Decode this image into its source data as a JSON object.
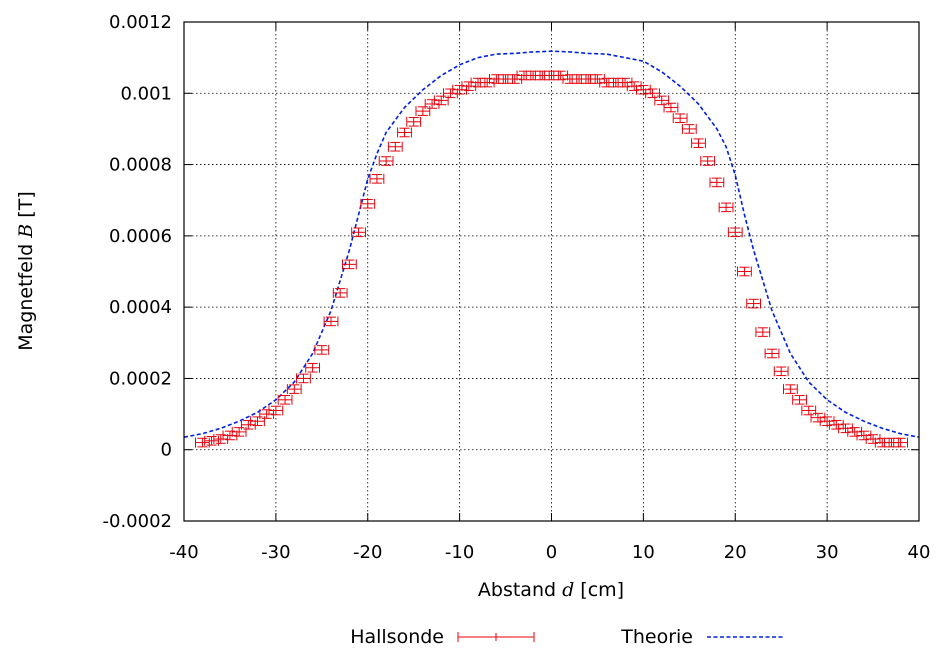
{
  "chart_data": {
    "type": "scatter",
    "title": "",
    "xlabel": {
      "prefix": "Abstand ",
      "symbol": "d",
      "suffix": " [cm]"
    },
    "ylabel": {
      "prefix": "Magnetfeld ",
      "symbol": "B",
      "suffix": " [T]"
    },
    "xlim": [
      -40,
      40
    ],
    "ylim": [
      -0.0002,
      0.0012
    ],
    "x_ticks": [
      "-40",
      "-30",
      "-20",
      "-10",
      "0",
      "10",
      "20",
      "30",
      "40"
    ],
    "y_ticks": [
      "-0.0002",
      "0",
      "0.0002",
      "0.0004",
      "0.0006",
      "0.0008",
      "0.001",
      "0.0012"
    ],
    "grid": true,
    "legend_position": "bottom",
    "x_error": 0.75,
    "y_error": 1.2e-05,
    "series": [
      {
        "name": "Hallsonde",
        "style": "errorbars",
        "color": "#e8000b",
        "x": [
          -38,
          -37,
          -36,
          -35,
          -34,
          -33,
          -32,
          -31,
          -30,
          -29,
          -28,
          -27,
          -26,
          -25,
          -24,
          -23,
          -22,
          -21,
          -20,
          -19,
          -18,
          -17,
          -16,
          -15,
          -14,
          -13,
          -12,
          -11,
          -10,
          -9,
          -8,
          -7,
          -6,
          -5,
          -4,
          -3,
          -2,
          -1,
          0,
          1,
          2,
          3,
          4,
          5,
          6,
          7,
          8,
          9,
          10,
          11,
          12,
          13,
          14,
          15,
          16,
          17,
          18,
          19,
          20,
          21,
          22,
          23,
          24,
          25,
          26,
          27,
          28,
          29,
          30,
          31,
          32,
          33,
          34,
          35,
          36,
          37,
          38
        ],
        "y": [
          2e-05,
          2.5e-05,
          3e-05,
          4e-05,
          5e-05,
          7e-05,
          8e-05,
          0.0001,
          0.00011,
          0.00014,
          0.00017,
          0.0002,
          0.00023,
          0.00028,
          0.00036,
          0.00044,
          0.00052,
          0.00061,
          0.00069,
          0.00076,
          0.00081,
          0.00085,
          0.00089,
          0.00092,
          0.00095,
          0.00097,
          0.00098,
          0.001,
          0.00101,
          0.00102,
          0.00103,
          0.00103,
          0.00104,
          0.00104,
          0.00104,
          0.00105,
          0.00105,
          0.00105,
          0.00105,
          0.00105,
          0.00104,
          0.00104,
          0.00104,
          0.00104,
          0.00103,
          0.00103,
          0.00103,
          0.00102,
          0.00101,
          0.001,
          0.00098,
          0.00096,
          0.00093,
          0.0009,
          0.00086,
          0.00081,
          0.00075,
          0.00068,
          0.00061,
          0.0005,
          0.00041,
          0.00033,
          0.00027,
          0.00022,
          0.00017,
          0.00014,
          0.00011,
          9e-05,
          8e-05,
          7e-05,
          6e-05,
          5e-05,
          4e-05,
          3e-05,
          2e-05,
          2e-05,
          2e-05
        ]
      },
      {
        "name": "Theorie",
        "style": "dashed-line",
        "color": "#0020e0",
        "x": [
          -40,
          -38,
          -36,
          -34,
          -32,
          -30,
          -28,
          -26,
          -24,
          -22,
          -21,
          -20,
          -19,
          -18,
          -16,
          -14,
          -12,
          -10,
          -8,
          -6,
          -4,
          -2,
          0,
          2,
          4,
          6,
          8,
          10,
          12,
          14,
          16,
          18,
          19,
          20,
          21,
          22,
          24,
          26,
          28,
          30,
          32,
          34,
          36,
          38,
          40
        ],
        "y": [
          3.5e-05,
          4.5e-05,
          6e-05,
          8e-05,
          0.000105,
          0.00014,
          0.00019,
          0.00027,
          0.00039,
          0.00056,
          0.00066,
          0.00076,
          0.00083,
          0.00089,
          0.00096,
          0.00101,
          0.00105,
          0.00108,
          0.0011,
          0.00111,
          0.001112,
          0.001116,
          0.001118,
          0.001116,
          0.001112,
          0.00111,
          0.0011,
          0.00109,
          0.00106,
          0.00102,
          0.00097,
          0.0009,
          0.00085,
          0.00077,
          0.00066,
          0.00056,
          0.00039,
          0.00027,
          0.00019,
          0.00014,
          0.000105,
          8e-05,
          6e-05,
          4.5e-05,
          3.5e-05
        ]
      }
    ]
  }
}
